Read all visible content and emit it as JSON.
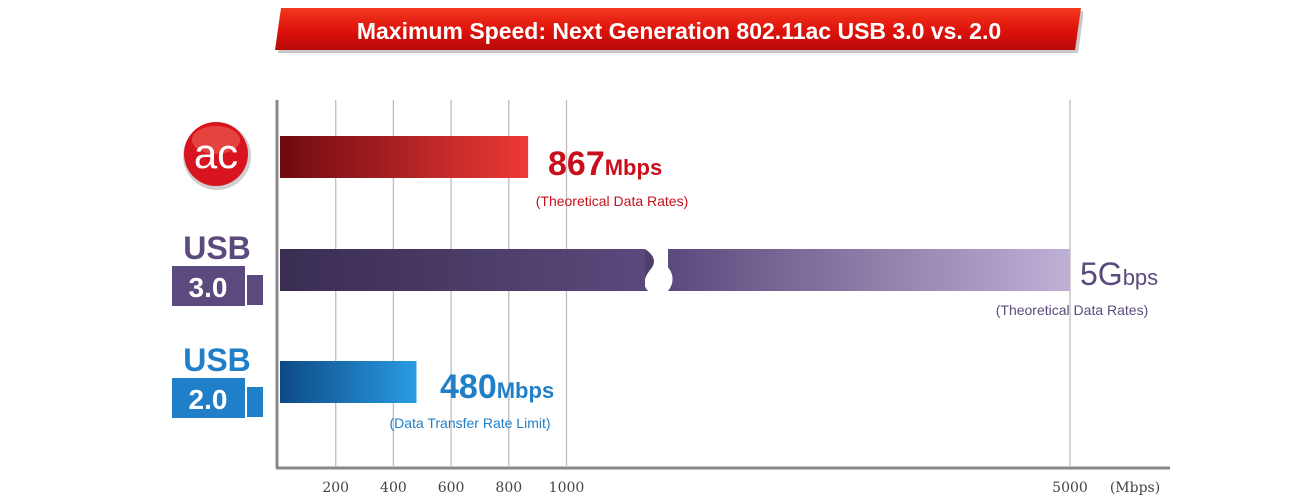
{
  "title": "Maximum Speed: Next Generation 802.11ac USB 3.0 vs. 2.0",
  "colors": {
    "banner": "#e8190f",
    "ac": "#c8101c",
    "usb3": "#5b4a7e",
    "usb2": "#1f7fc8"
  },
  "icons": {
    "ac": {
      "text": "ac",
      "name": "ac-logo-icon"
    },
    "usb3": {
      "line1": "USB",
      "line2": "3.0",
      "name": "usb-3-icon"
    },
    "usb2": {
      "line1": "USB",
      "line2": "2.0",
      "name": "usb-2-icon"
    }
  },
  "chart_data": {
    "type": "bar",
    "orientation": "horizontal",
    "title": "Maximum Speed: Next Generation 802.11ac USB 3.0 vs. 2.0",
    "x_unit": "(Mbps)",
    "x_ticks": [
      200,
      400,
      600,
      800,
      1000,
      5000
    ],
    "axis_break": "between 1000 and 5000",
    "grid": true,
    "bars": [
      {
        "category": "ac",
        "value": 867,
        "value_number": "867",
        "value_unit": "Mbps",
        "note": "(Theoretical Data Rates)",
        "color": "#c8101c"
      },
      {
        "category": "USB 3.0",
        "value": 5000,
        "value_number": "5G",
        "value_unit": "bps",
        "note": "(Theoretical Data Rates)",
        "color": "#5b4a7e"
      },
      {
        "category": "USB 2.0",
        "value": 480,
        "value_number": "480",
        "value_unit": "Mbps",
        "note": "(Data Transfer Rate Limit)",
        "color": "#1f7fc8"
      }
    ]
  }
}
